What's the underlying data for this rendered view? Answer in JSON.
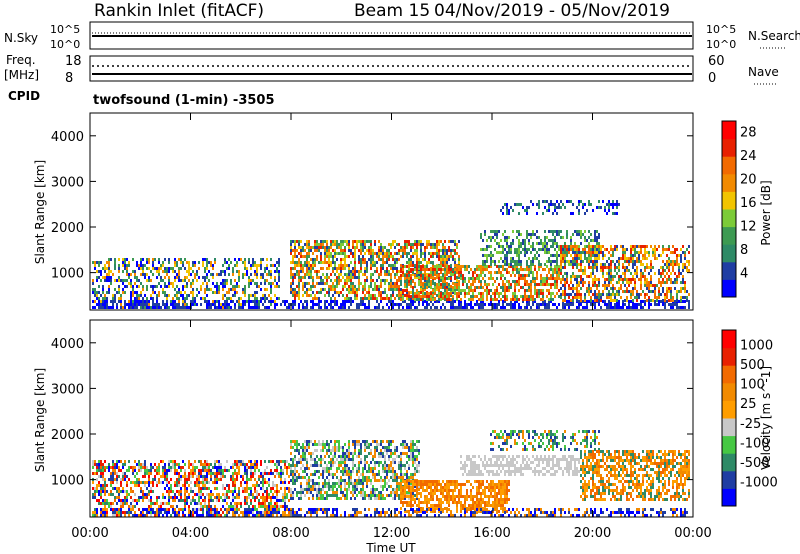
{
  "header": {
    "radar": "Rankin Inlet (fitACF)",
    "beam": "Beam 15",
    "dates": "04/Nov/2019 - 05/Nov/2019",
    "program": "twofsound (1-min) -3505"
  },
  "strip": {
    "nsky_label": "N.Sky",
    "nsearch_label": "N.Search",
    "nsky_ticks": [
      "10^5",
      "10^0"
    ],
    "nsky_right_ticks": [
      "10^5",
      "10^0"
    ],
    "freq_label": "Freq.",
    "freq_unit": "[MHz]",
    "freq_ticks": [
      "18",
      "8"
    ],
    "nave_label": "Nave",
    "nave_ticks": [
      "60",
      "0"
    ],
    "cpid_label": "CPID"
  },
  "colors": {
    "power": [
      "#0000ff",
      "#1f3da3",
      "#2e8a66",
      "#3d9a52",
      "#7ccb38",
      "#f2c400",
      "#f28a00",
      "#f26a00",
      "#e82000",
      "#ff0000"
    ],
    "velocity": [
      "#0000ff",
      "#1f3da3",
      "#2e8a66",
      "#46c843",
      "#c8c8c8",
      "#ff9d00",
      "#f28a00",
      "#f26a00",
      "#e82000",
      "#ff0000"
    ]
  },
  "chart_data": [
    {
      "type": "heatmap",
      "name_hint": "power",
      "ylabel": "Slant Range [km]",
      "xlabel": "Time UT",
      "xlim": [
        "00:00",
        "24:00"
      ],
      "ylim": [
        180,
        4500
      ],
      "y_ticks": [
        "1000",
        "2000",
        "3000",
        "4000"
      ],
      "x_ticks": [
        "00:00",
        "04:00",
        "08:00",
        "12:00",
        "16:00",
        "20:00",
        "00:00"
      ],
      "colorbar_label": "Power [dB]",
      "colorbar_ticks": [
        "4",
        "8",
        "12",
        "16",
        "20",
        "24",
        "28"
      ],
      "color_range": [
        0,
        30
      ]
    },
    {
      "type": "heatmap",
      "name_hint": "velocity",
      "ylabel": "Slant Range [km]",
      "xlabel": "Time UT",
      "xlim": [
        "00:00",
        "24:00"
      ],
      "ylim": [
        180,
        4500
      ],
      "y_ticks": [
        "1000",
        "2000",
        "3000",
        "4000"
      ],
      "x_ticks": [
        "00:00",
        "04:00",
        "08:00",
        "12:00",
        "16:00",
        "20:00",
        "00:00"
      ],
      "colorbar_label": "Velocity [m s^-1]",
      "colorbar_ticks": [
        "1000",
        "500",
        "100",
        "25",
        "-25",
        "-100",
        "-500",
        "-1000"
      ],
      "color_range": [
        -1000,
        1000
      ]
    }
  ]
}
